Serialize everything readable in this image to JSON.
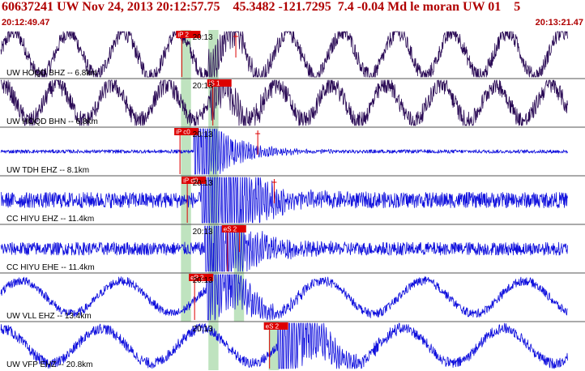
{
  "header": {
    "title": "60637241 UW Nov 24, 2013 20:12:57.75    45.3482 -121.7295  7.4 -0.04 Md le moran UW 01    5",
    "time_start": "20:12:49.47",
    "time_end": "20:13:21.47"
  },
  "colors": {
    "header_text": "#b00000",
    "trace_purple": "#2a0a55",
    "trace_blue": "#1010dd",
    "pick_box": "#dd0000",
    "pick_window": "#bfe3bf",
    "separator": "#555555"
  },
  "chart_data": {
    "type": "line",
    "title": "60637241 UW Nov 24, 2013 20:12:57.75",
    "x_unit": "seconds after 20:12:49.47",
    "xlim": [
      0,
      32
    ],
    "time_label_text": "20:13",
    "time_label_at": 10.53,
    "event": {
      "id": "60637241",
      "network": "UW",
      "date": "Nov 24, 2013",
      "origin_time": "20:12:57.75",
      "lat": 45.3482,
      "lon": -121.7295,
      "depth_km": 7.4,
      "magnitude": -0.04,
      "mag_type": "Md",
      "author": "le moran",
      "region": "UW 01",
      "extra": "5"
    },
    "traces": [
      {
        "label": "UW HOQD BHZ -- 6.8km",
        "color": "purple",
        "pick_label": "iP 2",
        "pick_time": 9.9,
        "arrival_time": 11.4,
        "s_pick_label": "",
        "s_time": null,
        "end_marker_time": 12.9,
        "amp_shown": 0.33,
        "low_freq_period_s": 3.0,
        "low_freq_amp": 0.33,
        "noise_amp": 0.12,
        "burst_amp": 0.3
      },
      {
        "label": "UW HOQD BHN -- 6.8km",
        "color": "purple",
        "pick_label": "iS 1",
        "pick_time": 11.6,
        "arrival_time": 11.5,
        "s_pick_label": "",
        "s_time": null,
        "end_marker_time": null,
        "amp_shown": 0.36,
        "low_freq_period_s": 3.0,
        "low_freq_amp": 0.3,
        "noise_amp": 0.15,
        "burst_amp": 0.4
      },
      {
        "label": "UW TDH EHZ -- 8.1km",
        "color": "blue",
        "pick_label": "iP c0",
        "pick_time": 9.8,
        "arrival_time": 10.6,
        "s_pick_label": "",
        "s_time": null,
        "end_marker_time": 14.1,
        "amp_shown": 0.22,
        "low_freq_period_s": 0,
        "low_freq_amp": 0,
        "noise_amp": 0.03,
        "burst_amp": 0.55
      },
      {
        "label": "CC HIYU EHZ -- 11.4km",
        "color": "blue",
        "pick_label": "iP d0",
        "pick_time": 10.2,
        "arrival_time": 11.0,
        "s_pick_label": "",
        "s_time": null,
        "end_marker_time": 15.0,
        "amp_shown": 0.1,
        "low_freq_period_s": 0,
        "low_freq_amp": 0,
        "noise_amp": 0.06,
        "burst_amp": 0.7
      },
      {
        "label": "CC HIYU EHE -- 11.4km",
        "color": "blue",
        "pick_label": "eS 2",
        "pick_time": 12.4,
        "arrival_time": 11.2,
        "s_pick_label": "",
        "s_time": null,
        "end_marker_time": 13.1,
        "amp_shown": 0.16,
        "low_freq_period_s": 0,
        "low_freq_amp": 0,
        "noise_amp": 0.08,
        "burst_amp": 0.6
      },
      {
        "label": "UW VLL EHZ -- 13.4km",
        "color": "blue",
        "pick_label": "eP 2",
        "pick_time": 10.6,
        "arrival_time": 11.3,
        "s_pick_label": "",
        "s_time": null,
        "end_marker_time": null,
        "amp_shown": 0.24,
        "low_freq_period_s": 5.5,
        "low_freq_amp": 0.18,
        "noise_amp": 0.08,
        "burst_amp": 0.6
      },
      {
        "label": "UW VFP EHZ -- 20.8km",
        "color": "blue",
        "pick_label": "eS 2",
        "pick_time": 14.7,
        "arrival_time": 15.2,
        "s_pick_label": "",
        "s_time": null,
        "end_marker_time": null,
        "amp_shown": 0.25,
        "low_freq_period_s": 5.5,
        "low_freq_amp": 0.2,
        "noise_amp": 0.1,
        "burst_amp": 0.9
      }
    ],
    "shading_windows": [
      {
        "traces": [
          0,
          1,
          2,
          3,
          4,
          5
        ],
        "t_start": 9.9,
        "t_end": 10.45
      },
      {
        "traces": [
          0,
          1,
          2,
          3,
          4,
          5,
          6
        ],
        "t_start": 11.4,
        "t_end": 11.95
      },
      {
        "traces": [
          4,
          5
        ],
        "t_start": 12.8,
        "t_end": 13.35
      },
      {
        "traces": [
          6
        ],
        "t_start": 14.7,
        "t_end": 15.25
      }
    ]
  }
}
